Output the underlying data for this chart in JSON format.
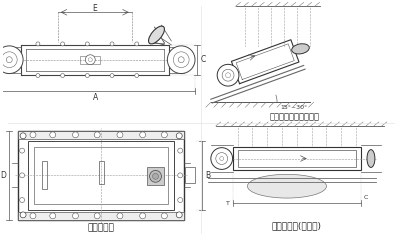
{
  "bg_color": "#ffffff",
  "line_color": "#555555",
  "dark_line": "#333333",
  "text_color": "#333333",
  "label_waixing": "外形尺寸图",
  "label_qingxie": "安装示意图（倾斜式）",
  "label_shuiping": "安装示意图(水平式)",
  "dim_A": "A",
  "dim_B": "B",
  "dim_C": "C",
  "dim_D": "D",
  "dim_E": "E",
  "angle_label": "15°~30°"
}
